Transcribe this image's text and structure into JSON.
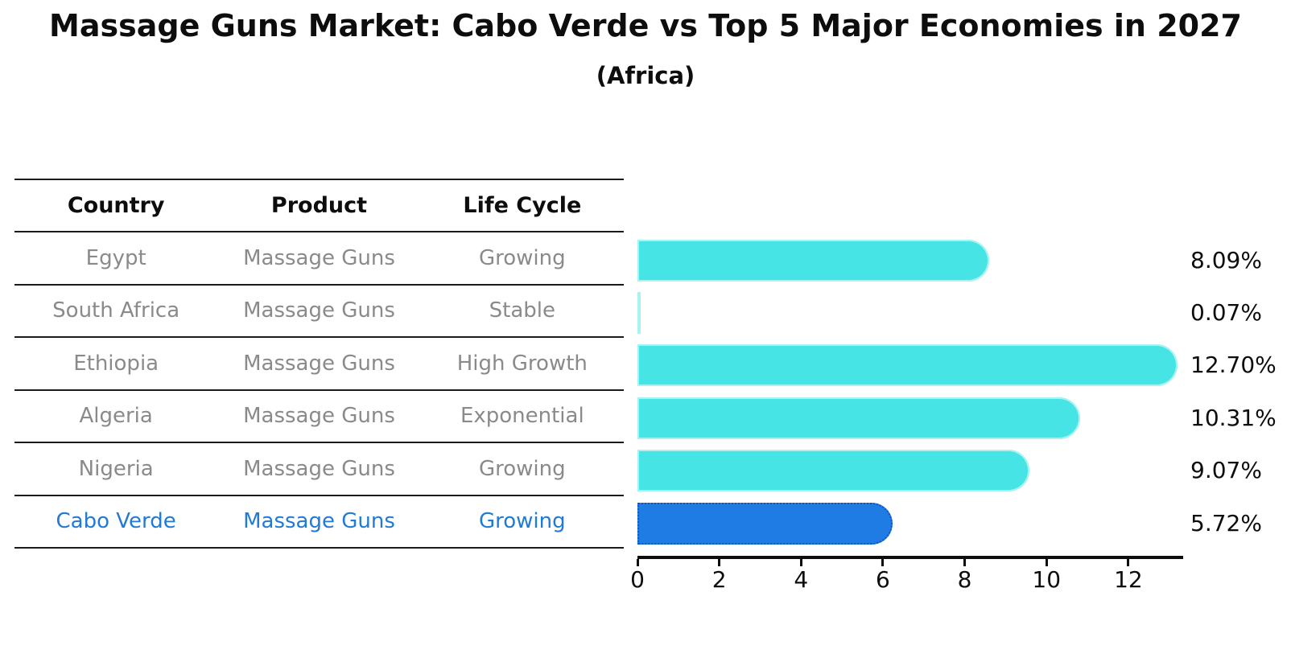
{
  "title": "Massage Guns Market: Cabo Verde vs Top 5 Major Economies in 2027",
  "subtitle": "(Africa)",
  "table": {
    "headers": [
      "Country",
      "Product",
      "Life Cycle"
    ],
    "rows": [
      {
        "country": "Egypt",
        "product": "Massage Guns",
        "life_cycle": "Growing",
        "highlight": false
      },
      {
        "country": "South Africa",
        "product": "Massage Guns",
        "life_cycle": "Stable",
        "highlight": false
      },
      {
        "country": "Ethiopia",
        "product": "Massage Guns",
        "life_cycle": "High Growth",
        "highlight": false
      },
      {
        "country": "Algeria",
        "product": "Massage Guns",
        "life_cycle": "Exponential",
        "highlight": false
      },
      {
        "country": "Nigeria",
        "product": "Massage Guns",
        "life_cycle": "Growing",
        "highlight": false
      },
      {
        "country": "Cabo Verde",
        "product": "Massage Guns",
        "life_cycle": "Growing",
        "highlight": true
      }
    ]
  },
  "chart_data": {
    "type": "bar",
    "orientation": "horizontal",
    "title": "Massage Guns Market: Cabo Verde vs Top 5 Major Economies in 2027",
    "subtitle": "(Africa)",
    "categories": [
      "Egypt",
      "South Africa",
      "Ethiopia",
      "Algeria",
      "Nigeria",
      "Cabo Verde"
    ],
    "values": [
      8.09,
      0.07,
      12.7,
      10.31,
      9.07,
      5.72
    ],
    "value_labels": [
      "8.09%",
      "0.07%",
      "12.70%",
      "10.31%",
      "9.07%",
      "5.72%"
    ],
    "unit": "percent",
    "highlight_category": "Cabo Verde",
    "xlim": [
      0,
      13.34
    ],
    "xticks": [
      0,
      2,
      4,
      6,
      8,
      10,
      12
    ],
    "grid": false,
    "legend": "none",
    "bar_color": "#46E4E4",
    "highlight_bar_color": "#1E7CE4"
  },
  "colors": {
    "bar": "#46E4E4",
    "bar_edge": "#A9F2F2",
    "highlight_bar": "#1E7CE4",
    "highlight_bar_border": "#1055C0",
    "highlight_text": "#217BD4",
    "row_text": "#8A8A8A",
    "heading_text": "#0D0D0D",
    "line": "#1A1A1A",
    "background": "#FFFFFF"
  }
}
